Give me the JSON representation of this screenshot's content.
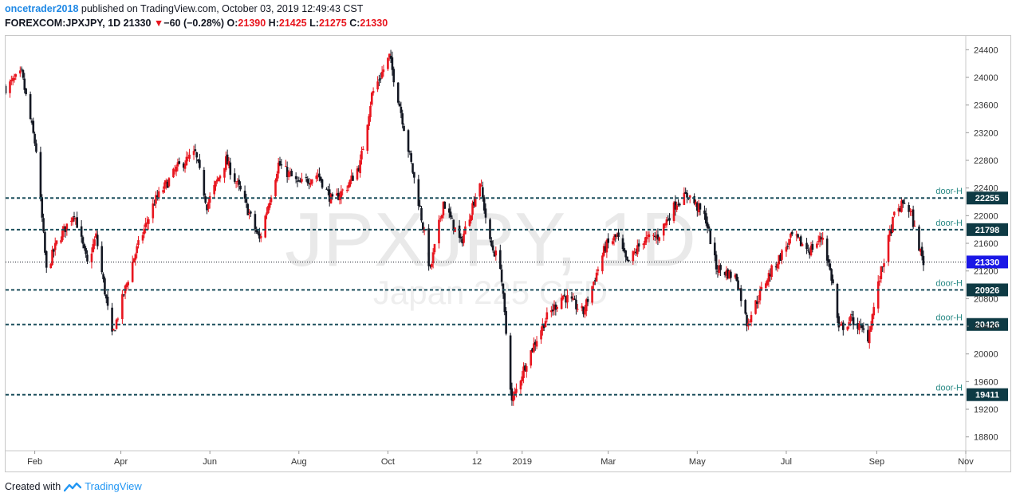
{
  "header": {
    "user": "oncetrader2018",
    "published": "published on TradingView.com, October 03, 2019 12:49:43 CST",
    "symbol": "FOREXCOM:JPXJPY, 1D",
    "last": "21330",
    "change": "−60 (−0.28%)",
    "o_label": "O:",
    "o": "21390",
    "h_label": "H:",
    "h": "21425",
    "l_label": "L:",
    "l": "21275",
    "c_label": "C:",
    "c": "21330"
  },
  "footer": {
    "created_with": "Created with",
    "brand": "TradingView"
  },
  "watermark": {
    "main": "JPXJPY, 1D",
    "sub": "Japan 225 CFD"
  },
  "colors": {
    "up": "#e8151e",
    "down": "#131722",
    "level": "#1c4f5c",
    "last_badge": "#1a17e6",
    "level_badge": "#0e3a44"
  },
  "chart_data": {
    "type": "candlestick",
    "ylim": [
      18600,
      24600
    ],
    "y_ticks": [
      18800,
      19200,
      19600,
      20000,
      20400,
      20800,
      21200,
      21600,
      22000,
      22400,
      22800,
      23200,
      23600,
      24000,
      24400
    ],
    "x_labels": [
      {
        "label": "Feb",
        "date": "2018-02-01"
      },
      {
        "label": "Apr",
        "date": "2018-04-01"
      },
      {
        "label": "Jun",
        "date": "2018-06-01"
      },
      {
        "label": "Aug",
        "date": "2018-08-01"
      },
      {
        "label": "Oct",
        "date": "2018-10-01"
      },
      {
        "label": "12",
        "date": "2018-12-01"
      },
      {
        "label": "2019",
        "date": "2019-01-01"
      },
      {
        "label": "Mar",
        "date": "2019-03-01"
      },
      {
        "label": "May",
        "date": "2019-05-01"
      },
      {
        "label": "Jul",
        "date": "2019-07-01"
      },
      {
        "label": "Sep",
        "date": "2019-09-01"
      },
      {
        "label": "Nov",
        "date": "2019-11-01"
      }
    ],
    "x_range": [
      "2018-01-12",
      "2019-11-01"
    ],
    "close_path": [
      {
        "date": "2018-01-12",
        "close": 23850
      },
      {
        "date": "2018-01-23",
        "close": 24050
      },
      {
        "date": "2018-02-02",
        "close": 22950
      },
      {
        "date": "2018-02-09",
        "close": 21200
      },
      {
        "date": "2018-02-16",
        "close": 21600
      },
      {
        "date": "2018-02-28",
        "close": 22050
      },
      {
        "date": "2018-03-09",
        "close": 21300
      },
      {
        "date": "2018-03-15",
        "close": 21700
      },
      {
        "date": "2018-03-26",
        "close": 20250
      },
      {
        "date": "2018-04-10",
        "close": 21400
      },
      {
        "date": "2018-04-24",
        "close": 22200
      },
      {
        "date": "2018-05-10",
        "close": 22700
      },
      {
        "date": "2018-05-22",
        "close": 22900
      },
      {
        "date": "2018-05-30",
        "close": 22150
      },
      {
        "date": "2018-06-12",
        "close": 22800
      },
      {
        "date": "2018-06-22",
        "close": 22350
      },
      {
        "date": "2018-07-05",
        "close": 21650
      },
      {
        "date": "2018-07-18",
        "close": 22750
      },
      {
        "date": "2018-08-01",
        "close": 22450
      },
      {
        "date": "2018-08-14",
        "close": 22600
      },
      {
        "date": "2018-08-24",
        "close": 22200
      },
      {
        "date": "2018-09-04",
        "close": 22450
      },
      {
        "date": "2018-09-12",
        "close": 22750
      },
      {
        "date": "2018-09-20",
        "close": 23750
      },
      {
        "date": "2018-10-02",
        "close": 24300
      },
      {
        "date": "2018-10-10",
        "close": 23500
      },
      {
        "date": "2018-10-23",
        "close": 22100
      },
      {
        "date": "2018-10-30",
        "close": 21200
      },
      {
        "date": "2018-11-08",
        "close": 22200
      },
      {
        "date": "2018-11-20",
        "close": 21600
      },
      {
        "date": "2018-12-03",
        "close": 22500
      },
      {
        "date": "2018-12-10",
        "close": 21600
      },
      {
        "date": "2018-12-17",
        "close": 21300
      },
      {
        "date": "2018-12-25",
        "close": 19300
      },
      {
        "date": "2019-01-04",
        "close": 19900
      },
      {
        "date": "2019-01-17",
        "close": 20500
      },
      {
        "date": "2019-01-29",
        "close": 20850
      },
      {
        "date": "2019-02-12",
        "close": 20600
      },
      {
        "date": "2019-02-27",
        "close": 21550
      },
      {
        "date": "2019-03-07",
        "close": 21700
      },
      {
        "date": "2019-03-14",
        "close": 21300
      },
      {
        "date": "2019-03-25",
        "close": 21650
      },
      {
        "date": "2019-04-04",
        "close": 21700
      },
      {
        "date": "2019-04-17",
        "close": 22200
      },
      {
        "date": "2019-04-25",
        "close": 22300
      },
      {
        "date": "2019-05-07",
        "close": 21950
      },
      {
        "date": "2019-05-14",
        "close": 21250
      },
      {
        "date": "2019-05-28",
        "close": 21100
      },
      {
        "date": "2019-06-04",
        "close": 20450
      },
      {
        "date": "2019-06-18",
        "close": 21100
      },
      {
        "date": "2019-06-28",
        "close": 21450
      },
      {
        "date": "2019-07-05",
        "close": 21700
      },
      {
        "date": "2019-07-17",
        "close": 21500
      },
      {
        "date": "2019-07-26",
        "close": 21700
      },
      {
        "date": "2019-08-02",
        "close": 21000
      },
      {
        "date": "2019-08-06",
        "close": 20350
      },
      {
        "date": "2019-08-15",
        "close": 20500
      },
      {
        "date": "2019-08-26",
        "close": 20250
      },
      {
        "date": "2019-09-03",
        "close": 21100
      },
      {
        "date": "2019-09-13",
        "close": 22000
      },
      {
        "date": "2019-09-20",
        "close": 22200
      },
      {
        "date": "2019-09-25",
        "close": 22000
      },
      {
        "date": "2019-09-27",
        "close": 21800
      },
      {
        "date": "2019-10-02",
        "close": 21390
      },
      {
        "date": "2019-10-03",
        "close": 21330
      }
    ],
    "levels": [
      {
        "label": "door-H",
        "value": 22255
      },
      {
        "label": "door-H",
        "value": 21798
      },
      {
        "label": "door-H",
        "value": 20926
      },
      {
        "label": "door-H",
        "value": 20426
      },
      {
        "label": "door-H",
        "value": 19411
      }
    ],
    "last_price": 21330
  }
}
